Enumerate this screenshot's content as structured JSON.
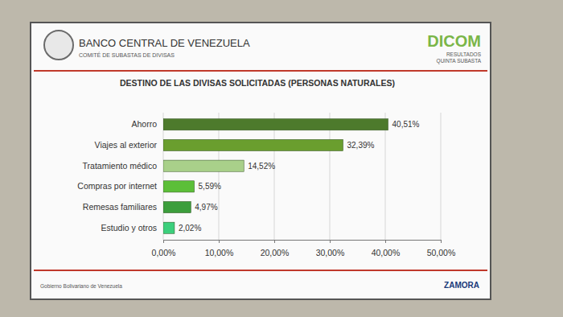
{
  "chart_data": {
    "type": "bar",
    "orientation": "horizontal",
    "title": "DESTINO DE LAS DIVISAS SOLICITADAS (PERSONAS NATURALES)",
    "annotations": [
      "BANCO CENTRAL DE VENEZUELA",
      "COMITÉ DE SUBASTAS DE DIVISAS",
      "DICOM",
      "RESULTADOS",
      "QUINTA SUBASTA",
      "Gobierno Bolivariano de Venezuela",
      "ZAMORA"
    ],
    "categories": [
      "Ahorro",
      "Viajes al exterior",
      "Tratamiento médico",
      "Compras por internet",
      "Remesas familiares",
      "Estudio y otros"
    ],
    "values": [
      40.51,
      32.39,
      14.52,
      5.59,
      4.97,
      2.02
    ],
    "value_labels": [
      "40,51%",
      "32,39%",
      "14,52%",
      "5,59%",
      "4,97%",
      "2,02%"
    ],
    "colors": [
      "#4d7a2c",
      "#6a9e2e",
      "#a9d08a",
      "#5cbf38",
      "#3c9e3c",
      "#3ccf7c"
    ],
    "data_labels": true,
    "xlim": [
      0,
      50
    ],
    "xticks": [
      {
        "value": 0,
        "label": "0,00%"
      },
      {
        "value": 10,
        "label": "10,00%"
      },
      {
        "value": 20,
        "label": "20,00%"
      },
      {
        "value": 30,
        "label": "30,00%"
      },
      {
        "value": 40,
        "label": "40,00%"
      },
      {
        "value": 50,
        "label": "50,00%"
      }
    ],
    "grid": true
  }
}
